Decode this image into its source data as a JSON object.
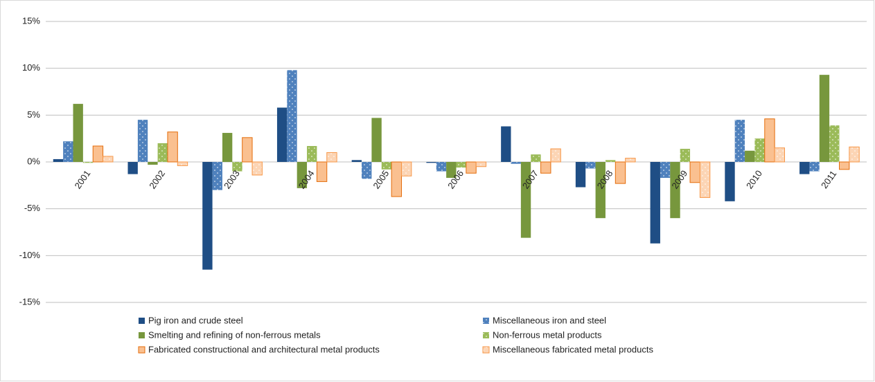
{
  "chart_data": {
    "type": "bar",
    "categories": [
      "2001",
      "2002",
      "2003",
      "2004",
      "2005",
      "2006",
      "2007",
      "2008",
      "2009",
      "2010",
      "2011"
    ],
    "series": [
      {
        "name": "Pig iron and crude steel",
        "color": "#1f4e85",
        "values": [
          0.3,
          -1.3,
          -11.5,
          5.8,
          0.2,
          -0.1,
          3.8,
          -2.7,
          -8.7,
          -4.2,
          -1.3
        ]
      },
      {
        "name": "Miscellaneous iron and steel",
        "color": "#4f81bd",
        "pattern": "dots",
        "values": [
          2.2,
          4.5,
          -3.0,
          9.8,
          -1.8,
          -1.0,
          -0.2,
          -0.7,
          -1.7,
          4.5,
          -1.0
        ]
      },
      {
        "name": "Smelting and refining of non-ferrous metals",
        "color": "#77973d",
        "values": [
          6.2,
          -0.3,
          3.1,
          -2.8,
          4.7,
          -1.7,
          -8.1,
          -6.0,
          -6.0,
          1.2,
          9.3
        ]
      },
      {
        "name": "Non-ferrous metal products",
        "color": "#9bbb59",
        "pattern": "dots",
        "values": [
          -0.1,
          2.0,
          -1.0,
          1.7,
          -0.8,
          -0.6,
          0.8,
          0.2,
          1.4,
          2.5,
          3.9
        ]
      },
      {
        "name": "Fabricated constructional and architectural metal products",
        "color": "#fac090",
        "edgecolor": "#e46c0a",
        "values": [
          1.7,
          3.2,
          2.6,
          -2.1,
          -3.7,
          -1.2,
          -1.2,
          -2.3,
          -2.2,
          4.6,
          -0.8
        ]
      },
      {
        "name": "Miscellaneous fabricated metal products",
        "color": "#fcd5b5",
        "edgecolor": "#f79646",
        "pattern": "dots",
        "values": [
          0.6,
          -0.4,
          -1.4,
          1.0,
          -1.5,
          -0.5,
          1.4,
          0.4,
          -3.8,
          1.5,
          1.6
        ]
      }
    ],
    "ylim": [
      -15,
      15
    ],
    "yticks": [
      {
        "value": -15,
        "label": "-15%"
      },
      {
        "value": -10,
        "label": "-10%"
      },
      {
        "value": -5,
        "label": "-5%"
      },
      {
        "value": 0,
        "label": "0%"
      },
      {
        "value": 5,
        "label": "5%"
      },
      {
        "value": 10,
        "label": "10%"
      },
      {
        "value": 15,
        "label": "15%"
      }
    ],
    "grid": true,
    "legend": "bottom"
  }
}
